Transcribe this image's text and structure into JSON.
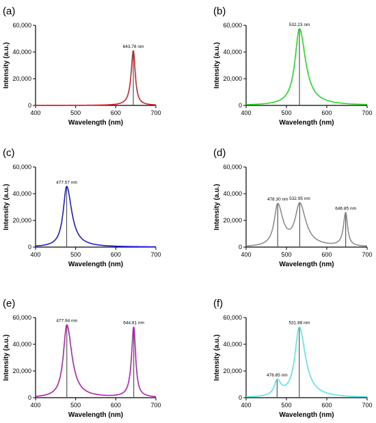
{
  "chart_data": [
    {
      "panel": "(a)",
      "type": "line",
      "xlabel": "Wavelength (nm)",
      "ylabel": "Intensity (a.u.)",
      "xlim": [
        400,
        700
      ],
      "ylim": [
        0,
        60000
      ],
      "xticks": [
        "400",
        "500",
        "600",
        "700"
      ],
      "yticks": [
        "0",
        "20,000",
        "40,000",
        "60,000"
      ],
      "color": "#d42020",
      "peaks": [
        {
          "center": 643.78,
          "height": 41000,
          "width_left": 7,
          "width_right": 6,
          "label": "643.78 nm"
        }
      ]
    },
    {
      "panel": "(b)",
      "type": "line",
      "xlabel": "Wavelength (nm)",
      "ylabel": "Intensity (a.u.)",
      "xlim": [
        400,
        700
      ],
      "ylim": [
        0,
        60000
      ],
      "xticks": [
        "400",
        "500",
        "600",
        "700"
      ],
      "yticks": [
        "0",
        "20,000",
        "40,000",
        "60,000"
      ],
      "color": "#22dd22",
      "peaks": [
        {
          "center": 532.23,
          "height": 57500,
          "width_left": 14,
          "width_right": 19,
          "label": "532.23 nm"
        }
      ]
    },
    {
      "panel": "(c)",
      "type": "line",
      "xlabel": "Wavelength (nm)",
      "ylabel": "Intensity (a.u.)",
      "xlim": [
        400,
        700
      ],
      "ylim": [
        0,
        60000
      ],
      "xticks": [
        "400",
        "500",
        "600",
        "700"
      ],
      "yticks": [
        "0",
        "20,000",
        "40,000",
        "60,000"
      ],
      "color": "#1a1adb",
      "peaks": [
        {
          "center": 477.57,
          "height": 45500,
          "width_left": 11,
          "width_right": 16,
          "label": "477.57 nm"
        }
      ]
    },
    {
      "panel": "(d)",
      "type": "line",
      "xlabel": "Wavelength (nm)",
      "ylabel": "Intensity (a.u.)",
      "xlim": [
        400,
        700
      ],
      "ylim": [
        0,
        60000
      ],
      "xticks": [
        "400",
        "500",
        "600",
        "700"
      ],
      "yticks": [
        "0",
        "20,000",
        "40,000",
        "60,000"
      ],
      "color": "#8c8c8c",
      "peaks": [
        {
          "center": 478.3,
          "height": 31000,
          "width_left": 11,
          "width_right": 16,
          "label": "478.30 nm"
        },
        {
          "center": 532.95,
          "height": 31000,
          "width_left": 14,
          "width_right": 19,
          "label": "532.95 nm"
        },
        {
          "center": 646.85,
          "height": 25000,
          "width_left": 7,
          "width_right": 6,
          "label": "646.85 nm"
        }
      ]
    },
    {
      "panel": "(e)",
      "type": "line",
      "xlabel": "Wavelength (nm)",
      "ylabel": "Intensity (a.u.)",
      "xlim": [
        400,
        700
      ],
      "ylim": [
        0,
        60000
      ],
      "xticks": [
        "400",
        "500",
        "600",
        "700"
      ],
      "yticks": [
        "0",
        "20,000",
        "40,000",
        "60,000"
      ],
      "color": "#b41eb4",
      "peaks": [
        {
          "center": 477.94,
          "height": 54500,
          "width_left": 11,
          "width_right": 16,
          "label": "477.94 nm"
        },
        {
          "center": 644.81,
          "height": 52500,
          "width_left": 7,
          "width_right": 6,
          "label": "644.81 nm"
        }
      ]
    },
    {
      "panel": "(f)",
      "type": "line",
      "xlabel": "Wavelength (nm)",
      "ylabel": "Intensity (a.u.)",
      "xlim": [
        400,
        700
      ],
      "ylim": [
        0,
        60000
      ],
      "xticks": [
        "400",
        "500",
        "600",
        "700"
      ],
      "yticks": [
        "0",
        "20,000",
        "40,000",
        "60,000"
      ],
      "color": "#55e8e8",
      "peaks": [
        {
          "center": 476.85,
          "height": 11000,
          "width_left": 9,
          "width_right": 12,
          "label": "476.85 nm"
        },
        {
          "center": 531.88,
          "height": 52500,
          "width_left": 14,
          "width_right": 19,
          "label": "531.88 nm"
        }
      ]
    }
  ]
}
